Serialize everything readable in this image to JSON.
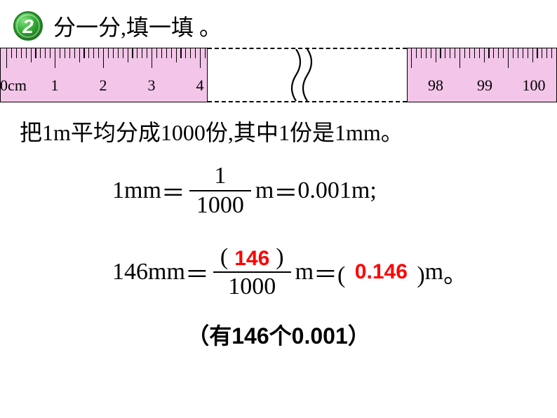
{
  "header": {
    "badge_number": "2",
    "title": "分一分,填一填 。"
  },
  "ruler": {
    "left_labels": [
      "0cm",
      "1",
      "2",
      "3",
      "4"
    ],
    "right_labels": [
      "98",
      "99",
      "100"
    ],
    "bg_color": "#f3c6e9",
    "border_color": "#000000"
  },
  "line1": {
    "prefix": "把",
    "val1": "1",
    "unit1": "m",
    "mid1": "平均分成",
    "val2": "1000",
    "mid2": "份,其中",
    "val3": "1",
    "mid3": "份是",
    "val4": "1",
    "unit2": "mm",
    "suffix": "。"
  },
  "eq1": {
    "lhs_val": "1",
    "lhs_unit": "mm",
    "eq": "＝",
    "frac_num": "1",
    "frac_den": "1000",
    "rhs_unit": " m",
    "eq2": "＝",
    "rhs_val": "0.001",
    "rhs_unit2": "m",
    "tail": " ;"
  },
  "eq2": {
    "lhs_val": "146",
    "lhs_unit": "mm",
    "eq": "＝",
    "frac_num_paren": "(　　)",
    "frac_num_answer": "146",
    "frac_den": "1000",
    "rhs_unit": " m",
    "eq2": "＝",
    "rhs_paren": "(　　　)",
    "rhs_answer": "0.146",
    "rhs_unit2": "m",
    "tail": " 。"
  },
  "line3": {
    "open": "（有",
    "n": "146",
    "mid": "个",
    "d": "0.001",
    "close": "）"
  },
  "colors": {
    "answer_red": "#ff0000",
    "badge_green": "#2fa82f",
    "badge_ring": "#1e7a1e"
  }
}
